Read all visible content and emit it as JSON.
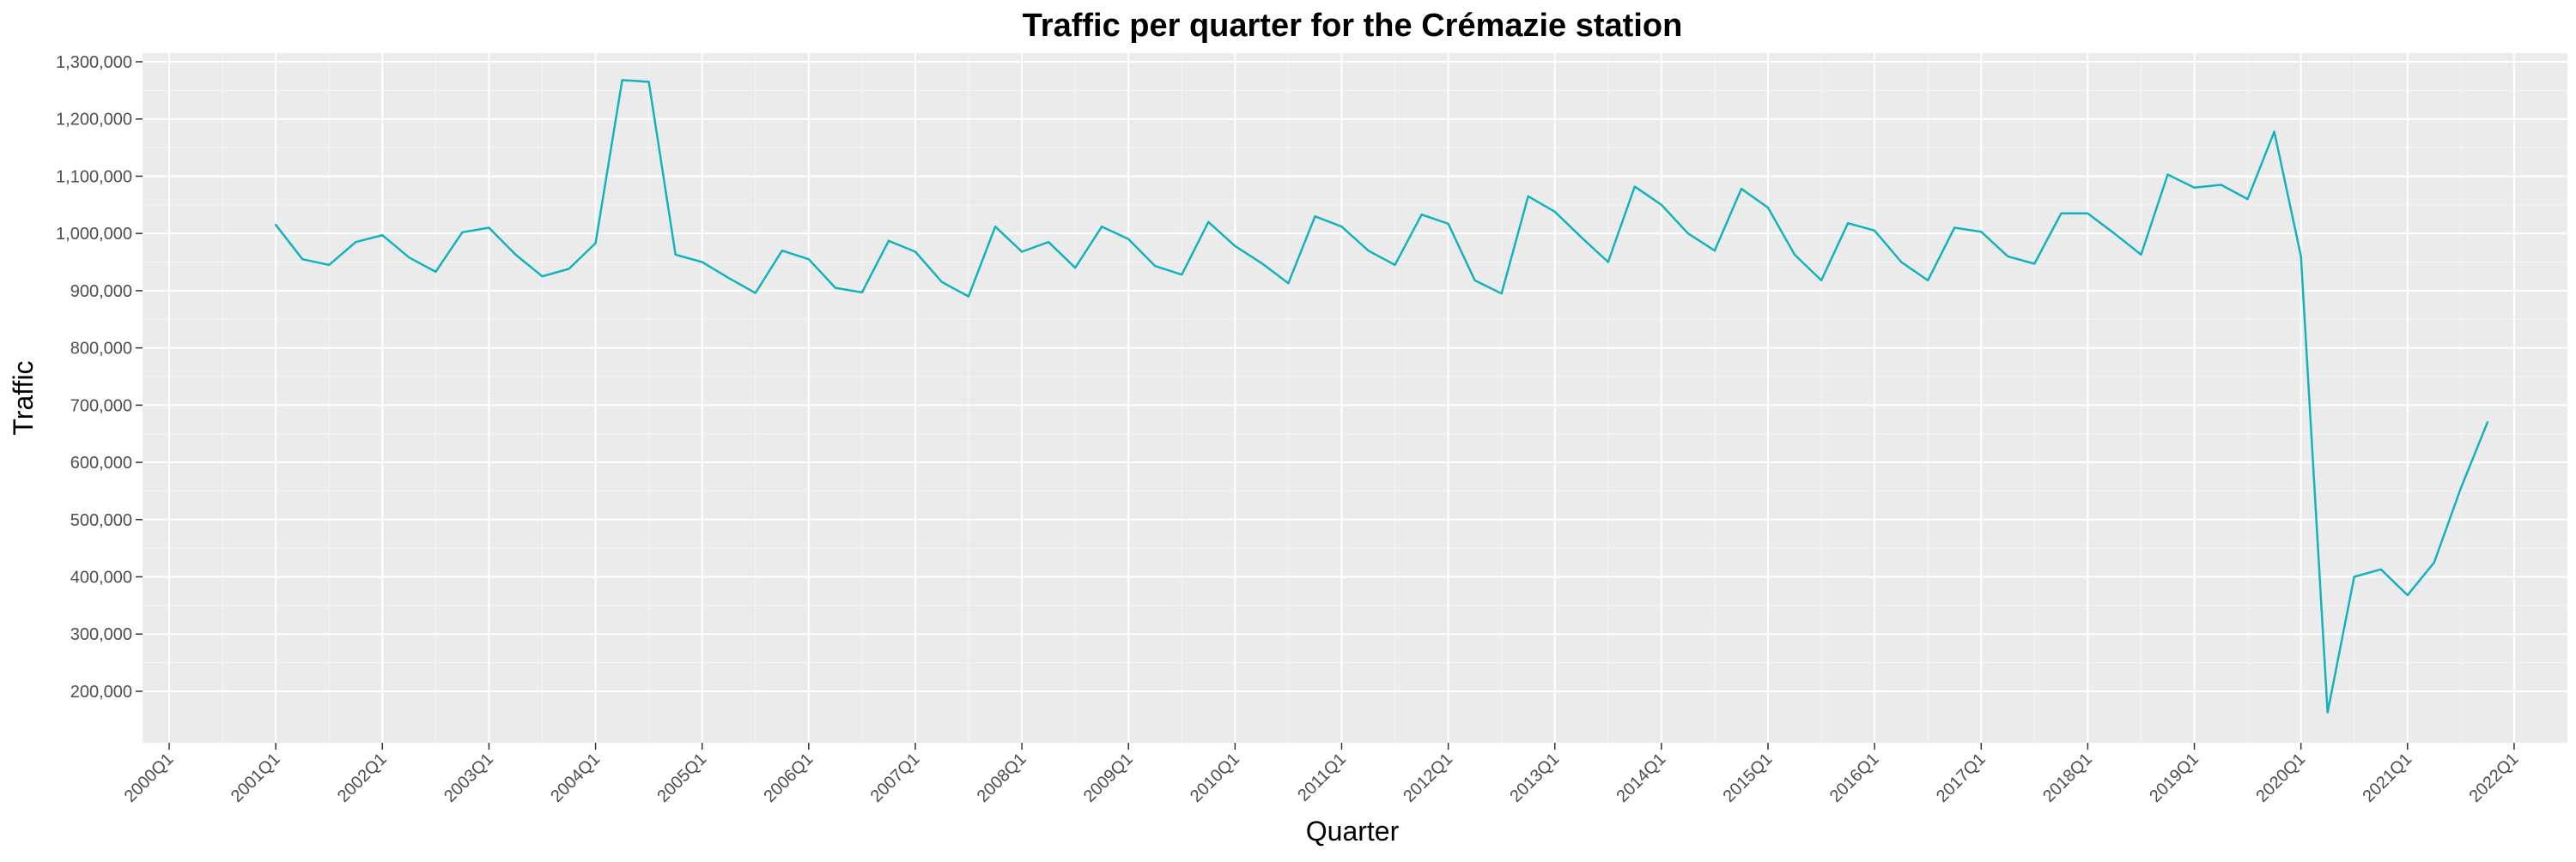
{
  "chart_data": {
    "type": "line",
    "title": "Traffic per quarter for the Crémazie station",
    "xlabel": "Quarter",
    "ylabel": "Traffic",
    "grid": true,
    "legend": "none",
    "colors": {
      "line": "#12b3bd",
      "panel": "#ebebeb",
      "grid_major": "#ffffff",
      "grid_minor": "#f5f5f5",
      "tick": "#333333"
    },
    "x_ticks": [
      "2000Q1",
      "2001Q1",
      "2002Q1",
      "2003Q1",
      "2004Q1",
      "2005Q1",
      "2006Q1",
      "2007Q1",
      "2008Q1",
      "2009Q1",
      "2010Q1",
      "2011Q1",
      "2012Q1",
      "2013Q1",
      "2014Q1",
      "2015Q1",
      "2016Q1",
      "2017Q1",
      "2018Q1",
      "2019Q1",
      "2020Q1",
      "2021Q1",
      "2022Q1"
    ],
    "y_ticks": [
      "200,000",
      "300,000",
      "400,000",
      "500,000",
      "600,000",
      "700,000",
      "800,000",
      "900,000",
      "1,000,000",
      "1,100,000",
      "1,200,000",
      "1,300,000"
    ],
    "xlim": [
      "1999Q4",
      "2022Q3"
    ],
    "ylim": [
      110000,
      1315000
    ],
    "series": [
      {
        "start": "2001Q1",
        "values": [
          1015000,
          955000,
          945000,
          985000,
          997000,
          958000,
          933000,
          1002000,
          1010000,
          963000,
          925000,
          938000,
          983000,
          1268000,
          1265000,
          963000,
          950000,
          922000,
          896000,
          970000,
          955000,
          905000,
          897000,
          987000,
          968000,
          915000,
          890000,
          1012000,
          968000,
          985000,
          940000,
          1012000,
          990000,
          943000,
          928000,
          1020000,
          978000,
          948000,
          913000,
          1030000,
          1012000,
          970000,
          945000,
          1033000,
          1017000,
          918000,
          895000,
          1065000,
          1038000,
          993000,
          950000,
          1082000,
          1050000,
          1000000,
          970000,
          1078000,
          1045000,
          963000,
          918000,
          1018000,
          1005000,
          950000,
          918000,
          1010000,
          1003000,
          960000,
          947000,
          1035000,
          1035000,
          1000000,
          963000,
          1103000,
          1080000,
          1085000,
          1060000,
          1178000,
          960000,
          163000,
          400000,
          413000,
          368000,
          425000,
          555000,
          670000
        ]
      }
    ]
  }
}
